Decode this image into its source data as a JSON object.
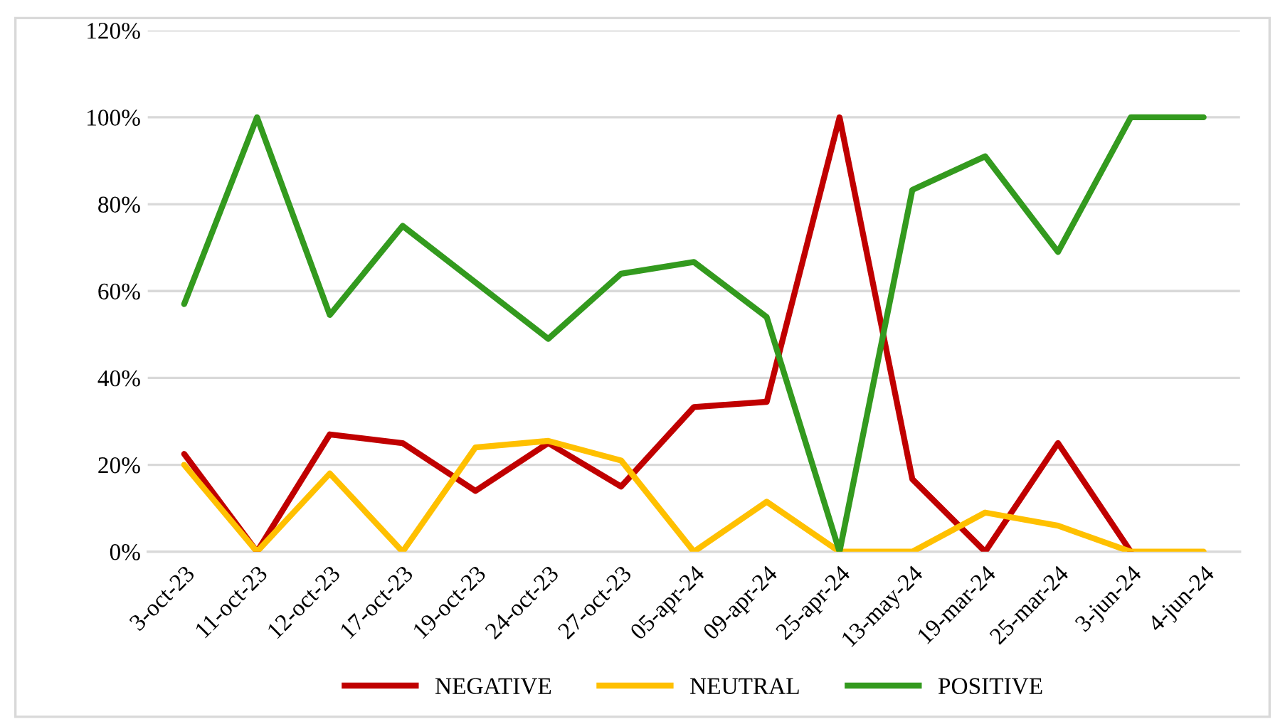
{
  "chart_data": {
    "type": "line",
    "categories": [
      "3-oct-23",
      "11-oct-23",
      "12-oct-23",
      "17-oct-23",
      "19-oct-23",
      "24-oct-23",
      "27-oct-23",
      "05-apr-24",
      "09-apr-24",
      "25-apr-24",
      "13-may-24",
      "19-mar-24",
      "25-mar-24",
      "3-jun-24",
      "4-jun-24"
    ],
    "series": [
      {
        "name": "NEGATIVE",
        "color": "#c00000",
        "values": [
          22.5,
          0,
          27,
          25,
          14,
          25,
          15,
          33.3,
          34.5,
          100,
          16.7,
          0,
          25,
          0,
          null
        ]
      },
      {
        "name": "NEUTRAL",
        "color": "#ffc000",
        "values": [
          20,
          0,
          18,
          0,
          24,
          25.5,
          21,
          0,
          11.5,
          0,
          0,
          9,
          6,
          0,
          0
        ]
      },
      {
        "name": "POSITIVE",
        "color": "#339a1e",
        "values": [
          57,
          100,
          54.5,
          75,
          62,
          49,
          64,
          66.7,
          54,
          0,
          83.3,
          91,
          69,
          100,
          100
        ]
      }
    ],
    "ylim": [
      0,
      120
    ],
    "yticks": [
      {
        "value": 0,
        "label": "0%"
      },
      {
        "value": 20,
        "label": "20%"
      },
      {
        "value": 40,
        "label": "40%"
      },
      {
        "value": 60,
        "label": "60%"
      },
      {
        "value": 80,
        "label": "80%"
      },
      {
        "value": 100,
        "label": "100%"
      },
      {
        "value": 120,
        "label": "120%"
      }
    ],
    "grid": "y",
    "legend": "bottom",
    "marker": "none",
    "line_style": "solid"
  }
}
